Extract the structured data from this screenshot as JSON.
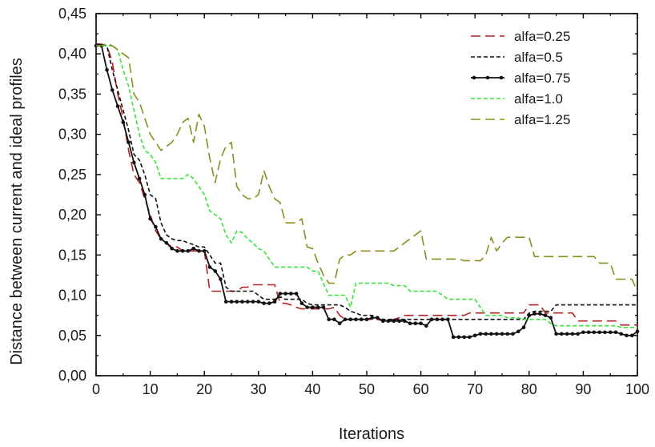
{
  "chart_data": {
    "type": "line",
    "xlabel": "Iterations",
    "ylabel": "Distance between current and ideal profiles",
    "xlim": [
      0,
      100
    ],
    "ylim": [
      0.0,
      0.45
    ],
    "xticks": [
      0,
      10,
      20,
      30,
      40,
      50,
      60,
      70,
      80,
      90,
      100
    ],
    "yticks": [
      0.0,
      0.05,
      0.1,
      0.15,
      0.2,
      0.25,
      0.3,
      0.35,
      0.4,
      0.45
    ],
    "xtick_labels": [
      "0",
      "10",
      "20",
      "30",
      "40",
      "50",
      "60",
      "70",
      "80",
      "90",
      "100"
    ],
    "ytick_labels": [
      "0,00",
      "0,05",
      "0,10",
      "0,15",
      "0,20",
      "0,25",
      "0,30",
      "0,35",
      "0,40",
      "0,45"
    ],
    "grid": false,
    "legend_position": "top-right",
    "series": [
      {
        "name": "alfa=0.25",
        "color": "#b22222",
        "dash": "long-dash",
        "x": [
          0,
          1,
          2,
          3,
          4,
          5,
          6,
          7,
          8,
          9,
          10,
          11,
          12,
          13,
          14,
          15,
          16,
          17,
          18,
          19,
          20,
          21,
          22,
          23,
          24,
          25,
          26,
          27,
          28,
          29,
          30,
          31,
          32,
          33,
          34,
          35,
          36,
          37,
          38,
          39,
          40,
          41,
          42,
          43,
          44,
          45,
          46,
          47,
          48,
          49,
          50,
          51,
          52,
          53,
          54,
          55,
          56,
          57,
          58,
          59,
          60,
          61,
          62,
          63,
          64,
          65,
          66,
          67,
          68,
          69,
          70,
          71,
          72,
          73,
          74,
          75,
          76,
          77,
          78,
          79,
          80,
          81,
          82,
          83,
          84,
          85,
          86,
          87,
          88,
          89,
          90,
          91,
          92,
          93,
          94,
          95,
          96,
          97,
          98,
          99,
          100
        ],
        "y": [
          0.412,
          0.412,
          0.41,
          0.39,
          0.35,
          0.32,
          0.28,
          0.25,
          0.24,
          0.22,
          0.2,
          0.18,
          0.17,
          0.165,
          0.16,
          0.16,
          0.155,
          0.155,
          0.155,
          0.155,
          0.155,
          0.105,
          0.105,
          0.105,
          0.105,
          0.105,
          0.105,
          0.11,
          0.11,
          0.113,
          0.113,
          0.113,
          0.113,
          0.113,
          0.09,
          0.09,
          0.088,
          0.085,
          0.083,
          0.083,
          0.083,
          0.083,
          0.083,
          0.083,
          0.085,
          0.075,
          0.07,
          0.07,
          0.07,
          0.07,
          0.07,
          0.07,
          0.07,
          0.068,
          0.068,
          0.07,
          0.072,
          0.075,
          0.075,
          0.075,
          0.075,
          0.075,
          0.075,
          0.075,
          0.075,
          0.075,
          0.075,
          0.075,
          0.075,
          0.078,
          0.078,
          0.078,
          0.078,
          0.078,
          0.078,
          0.078,
          0.078,
          0.078,
          0.078,
          0.078,
          0.088,
          0.088,
          0.088,
          0.078,
          0.078,
          0.078,
          0.078,
          0.078,
          0.078,
          0.068,
          0.068,
          0.068,
          0.068,
          0.068,
          0.068,
          0.068,
          0.068,
          0.063,
          0.063,
          0.063,
          0.063
        ]
      },
      {
        "name": "alfa=0.5",
        "color": "#111111",
        "dash": "short-dash",
        "x": [
          0,
          1,
          2,
          3,
          4,
          5,
          6,
          7,
          8,
          9,
          10,
          11,
          12,
          13,
          14,
          15,
          16,
          17,
          18,
          19,
          20,
          21,
          22,
          23,
          24,
          25,
          26,
          27,
          28,
          29,
          30,
          31,
          32,
          33,
          34,
          35,
          36,
          37,
          38,
          39,
          40,
          41,
          42,
          43,
          44,
          45,
          46,
          47,
          48,
          49,
          50,
          51,
          52,
          53,
          54,
          55,
          56,
          57,
          58,
          59,
          60,
          61,
          62,
          63,
          64,
          65,
          66,
          67,
          68,
          69,
          70,
          71,
          72,
          73,
          74,
          75,
          76,
          77,
          78,
          79,
          80,
          81,
          82,
          83,
          84,
          85,
          86,
          87,
          88,
          89,
          90,
          91,
          92,
          93,
          94,
          95,
          96,
          97,
          98,
          99,
          100
        ],
        "y": [
          0.412,
          0.412,
          0.41,
          0.38,
          0.355,
          0.33,
          0.305,
          0.275,
          0.268,
          0.25,
          0.225,
          0.22,
          0.19,
          0.175,
          0.17,
          0.168,
          0.168,
          0.165,
          0.163,
          0.16,
          0.16,
          0.15,
          0.14,
          0.14,
          0.11,
          0.105,
          0.105,
          0.105,
          0.105,
          0.105,
          0.1,
          0.095,
          0.095,
          0.095,
          0.098,
          0.095,
          0.095,
          0.095,
          0.095,
          0.09,
          0.088,
          0.088,
          0.088,
          0.088,
          0.088,
          0.088,
          0.085,
          0.08,
          0.078,
          0.075,
          0.075,
          0.075,
          0.072,
          0.07,
          0.07,
          0.07,
          0.07,
          0.07,
          0.07,
          0.07,
          0.07,
          0.07,
          0.07,
          0.07,
          0.07,
          0.07,
          0.07,
          0.07,
          0.07,
          0.07,
          0.07,
          0.07,
          0.07,
          0.07,
          0.07,
          0.07,
          0.07,
          0.07,
          0.07,
          0.07,
          0.078,
          0.08,
          0.08,
          0.08,
          0.08,
          0.088,
          0.088,
          0.088,
          0.088,
          0.088,
          0.088,
          0.088,
          0.088,
          0.088,
          0.088,
          0.088,
          0.088,
          0.088,
          0.088,
          0.088,
          0.088
        ]
      },
      {
        "name": "alfa=0.75",
        "color": "#111111",
        "dash": "solid",
        "markers": true,
        "x": [
          0,
          1,
          2,
          3,
          4,
          5,
          6,
          7,
          8,
          9,
          10,
          11,
          12,
          13,
          14,
          15,
          16,
          17,
          18,
          19,
          20,
          21,
          22,
          23,
          24,
          25,
          26,
          27,
          28,
          29,
          30,
          31,
          32,
          33,
          34,
          35,
          36,
          37,
          38,
          39,
          40,
          41,
          42,
          43,
          44,
          45,
          46,
          47,
          48,
          49,
          50,
          51,
          52,
          53,
          54,
          55,
          56,
          57,
          58,
          59,
          60,
          61,
          62,
          63,
          64,
          65,
          66,
          67,
          68,
          69,
          70,
          71,
          72,
          73,
          74,
          75,
          76,
          77,
          78,
          79,
          80,
          81,
          82,
          83,
          84,
          85,
          86,
          87,
          88,
          89,
          90,
          91,
          92,
          93,
          94,
          95,
          96,
          97,
          98,
          99,
          100
        ],
        "y": [
          0.41,
          0.41,
          0.38,
          0.355,
          0.335,
          0.315,
          0.29,
          0.265,
          0.245,
          0.225,
          0.195,
          0.185,
          0.17,
          0.165,
          0.158,
          0.155,
          0.155,
          0.155,
          0.158,
          0.155,
          0.155,
          0.135,
          0.13,
          0.12,
          0.092,
          0.092,
          0.092,
          0.092,
          0.092,
          0.092,
          0.092,
          0.09,
          0.09,
          0.092,
          0.102,
          0.102,
          0.102,
          0.102,
          0.09,
          0.085,
          0.085,
          0.085,
          0.085,
          0.07,
          0.07,
          0.065,
          0.07,
          0.07,
          0.07,
          0.07,
          0.07,
          0.072,
          0.072,
          0.068,
          0.068,
          0.068,
          0.068,
          0.068,
          0.065,
          0.065,
          0.065,
          0.062,
          0.07,
          0.07,
          0.07,
          0.07,
          0.048,
          0.048,
          0.048,
          0.048,
          0.05,
          0.052,
          0.052,
          0.052,
          0.052,
          0.052,
          0.052,
          0.052,
          0.055,
          0.06,
          0.075,
          0.077,
          0.077,
          0.075,
          0.072,
          0.052,
          0.052,
          0.052,
          0.052,
          0.052,
          0.054,
          0.054,
          0.054,
          0.054,
          0.054,
          0.054,
          0.054,
          0.052,
          0.05,
          0.05,
          0.055
        ]
      },
      {
        "name": "alfa=1.0",
        "color": "#33e633",
        "dash": "short-dash",
        "x": [
          0,
          1,
          2,
          3,
          4,
          5,
          6,
          7,
          8,
          9,
          10,
          11,
          12,
          13,
          14,
          15,
          16,
          17,
          18,
          19,
          20,
          21,
          22,
          23,
          24,
          25,
          26,
          27,
          28,
          29,
          30,
          31,
          32,
          33,
          34,
          35,
          36,
          37,
          38,
          39,
          40,
          41,
          42,
          43,
          44,
          45,
          46,
          47,
          48,
          49,
          50,
          51,
          52,
          53,
          54,
          55,
          56,
          57,
          58,
          59,
          60,
          61,
          62,
          63,
          64,
          65,
          66,
          67,
          68,
          69,
          70,
          71,
          72,
          73,
          74,
          75,
          76,
          77,
          78,
          79,
          80,
          81,
          82,
          83,
          84,
          85,
          86,
          87,
          88,
          89,
          90,
          91,
          92,
          93,
          94,
          95,
          96,
          97,
          98,
          99,
          100
        ],
        "y": [
          0.41,
          0.41,
          0.41,
          0.41,
          0.405,
          0.38,
          0.36,
          0.33,
          0.3,
          0.28,
          0.275,
          0.265,
          0.245,
          0.245,
          0.245,
          0.245,
          0.245,
          0.25,
          0.245,
          0.235,
          0.225,
          0.205,
          0.2,
          0.195,
          0.175,
          0.165,
          0.18,
          0.178,
          0.17,
          0.165,
          0.158,
          0.155,
          0.145,
          0.135,
          0.135,
          0.135,
          0.135,
          0.135,
          0.135,
          0.135,
          0.13,
          0.13,
          0.115,
          0.1,
          0.1,
          0.1,
          0.1,
          0.085,
          0.115,
          0.115,
          0.115,
          0.115,
          0.115,
          0.115,
          0.115,
          0.112,
          0.112,
          0.112,
          0.105,
          0.105,
          0.105,
          0.105,
          0.105,
          0.105,
          0.1,
          0.095,
          0.095,
          0.095,
          0.095,
          0.095,
          0.095,
          0.085,
          0.075,
          0.075,
          0.075,
          0.075,
          0.072,
          0.072,
          0.072,
          0.07,
          0.07,
          0.07,
          0.07,
          0.07,
          0.065,
          0.062,
          0.062,
          0.062,
          0.062,
          0.062,
          0.062,
          0.062,
          0.062,
          0.062,
          0.062,
          0.062,
          0.062,
          0.06,
          0.06,
          0.06,
          0.06
        ]
      },
      {
        "name": "alfa=1.25",
        "color": "#8c8c1f",
        "dash": "long-dash",
        "x": [
          0,
          1,
          2,
          3,
          4,
          5,
          6,
          7,
          8,
          9,
          10,
          11,
          12,
          13,
          14,
          15,
          16,
          17,
          18,
          19,
          20,
          21,
          22,
          23,
          24,
          25,
          26,
          27,
          28,
          29,
          30,
          31,
          32,
          33,
          34,
          35,
          36,
          37,
          38,
          39,
          40,
          41,
          42,
          43,
          44,
          45,
          46,
          47,
          48,
          49,
          50,
          51,
          52,
          53,
          54,
          55,
          56,
          57,
          58,
          59,
          60,
          61,
          62,
          63,
          64,
          65,
          66,
          67,
          68,
          69,
          70,
          71,
          72,
          73,
          74,
          75,
          76,
          77,
          78,
          79,
          80,
          81,
          82,
          83,
          84,
          85,
          86,
          87,
          88,
          89,
          90,
          91,
          92,
          93,
          94,
          95,
          96,
          97,
          98,
          99,
          100
        ],
        "y": [
          0.41,
          0.41,
          0.413,
          0.41,
          0.405,
          0.4,
          0.395,
          0.35,
          0.34,
          0.32,
          0.3,
          0.29,
          0.28,
          0.285,
          0.29,
          0.3,
          0.315,
          0.32,
          0.29,
          0.325,
          0.31,
          0.27,
          0.24,
          0.27,
          0.285,
          0.29,
          0.235,
          0.225,
          0.22,
          0.22,
          0.225,
          0.255,
          0.235,
          0.22,
          0.215,
          0.19,
          0.19,
          0.19,
          0.195,
          0.16,
          0.158,
          0.14,
          0.125,
          0.115,
          0.115,
          0.145,
          0.15,
          0.15,
          0.155,
          0.155,
          0.155,
          0.155,
          0.155,
          0.155,
          0.155,
          0.155,
          0.16,
          0.165,
          0.17,
          0.175,
          0.18,
          0.145,
          0.145,
          0.145,
          0.145,
          0.145,
          0.145,
          0.145,
          0.143,
          0.143,
          0.143,
          0.143,
          0.15,
          0.172,
          0.155,
          0.165,
          0.172,
          0.172,
          0.172,
          0.172,
          0.172,
          0.148,
          0.148,
          0.148,
          0.148,
          0.148,
          0.148,
          0.148,
          0.148,
          0.148,
          0.148,
          0.148,
          0.148,
          0.14,
          0.14,
          0.14,
          0.12,
          0.12,
          0.12,
          0.12,
          0.105
        ]
      }
    ]
  }
}
